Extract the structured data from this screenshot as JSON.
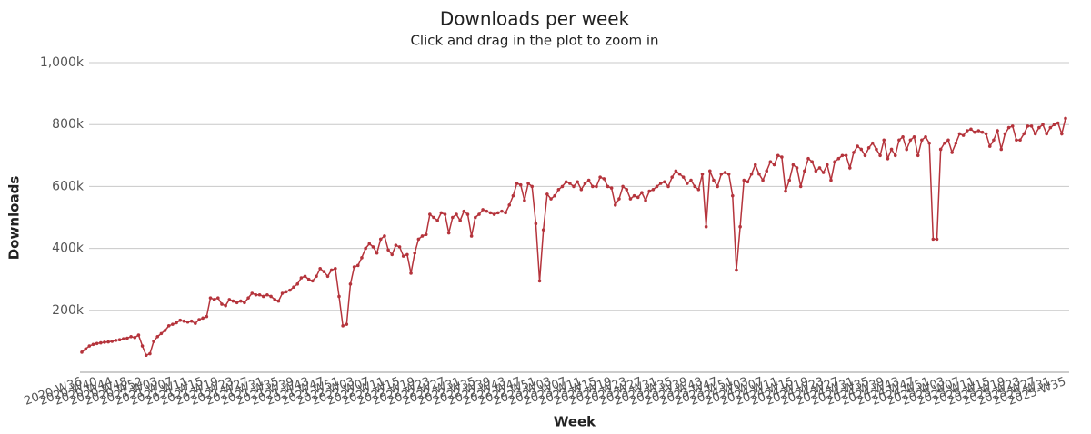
{
  "chart_data": {
    "type": "line",
    "title": "Downloads per week",
    "subtitle": "Click and drag in the plot to zoom in",
    "x_label": "Week",
    "y_label": "Downloads",
    "color": "#b5343c",
    "grid": true,
    "ylim": [
      0,
      1000000
    ],
    "yticks": [
      {
        "value": 200000,
        "label": "200k"
      },
      {
        "value": 400000,
        "label": "400k"
      },
      {
        "value": 600000,
        "label": "600k"
      },
      {
        "value": 800000,
        "label": "800k"
      },
      {
        "value": 1000000,
        "label": "1,000k"
      }
    ],
    "categories": [
      "2020-W36",
      null,
      null,
      null,
      "2020-W40",
      null,
      null,
      null,
      "2020-W44",
      null,
      null,
      null,
      "2020-W48",
      null,
      null,
      null,
      "2020-W52",
      null,
      null,
      null,
      "2021-W03",
      null,
      null,
      null,
      "2021-W07",
      null,
      null,
      null,
      "2021-W11",
      null,
      null,
      null,
      "2021-W15",
      null,
      null,
      null,
      "2021-W19",
      null,
      null,
      null,
      "2021-W23",
      null,
      null,
      null,
      "2021-W27",
      null,
      null,
      null,
      "2021-W31",
      null,
      null,
      null,
      "2021-W35",
      null,
      null,
      null,
      "2021-W39",
      null,
      null,
      null,
      "2021-W43",
      null,
      null,
      null,
      "2021-W47",
      null,
      null,
      null,
      "2021-W51",
      null,
      null,
      null,
      "2022-W03",
      null,
      null,
      null,
      "2022-W07",
      null,
      null,
      null,
      "2022-W11",
      null,
      null,
      null,
      "2022-W15",
      null,
      null,
      null,
      "2022-W19",
      null,
      null,
      null,
      "2022-W23",
      null,
      null,
      null,
      "2022-W27",
      null,
      null,
      null,
      "2022-W31",
      null,
      null,
      null,
      "2022-W35",
      null,
      null,
      null,
      "2022-W39",
      null,
      null,
      null,
      "2022-W43",
      null,
      null,
      null,
      "2022-W47",
      null,
      null,
      null,
      "2022-W51",
      null,
      null,
      null,
      "2023-W03",
      null,
      null,
      null,
      "2023-W07",
      null,
      null,
      null,
      "2023-W11",
      null,
      null,
      null,
      "2023-W15",
      null,
      null,
      null,
      "2023-W19",
      null,
      null,
      null,
      "2023-W23",
      null,
      null,
      null,
      "2023-W27",
      null,
      null,
      null,
      "2023-W31",
      null,
      null,
      null,
      "2023-W35",
      null,
      null,
      null,
      "2023-W39",
      null,
      null,
      null,
      "2023-W43",
      null,
      null,
      null,
      "2023-W47",
      null,
      null,
      null,
      "2023-W51",
      null,
      null,
      null,
      "2024-W03",
      null,
      null,
      null,
      "2024-W07",
      null,
      null,
      null,
      "2024-W11",
      null,
      null,
      null,
      "2024-W15",
      null,
      null,
      null,
      "2024-W19",
      null,
      null,
      null,
      "2024-W23",
      null,
      null,
      null,
      "2024-W27",
      null,
      null,
      null,
      "2024-W31",
      null,
      null,
      null,
      "2024-W35",
      null,
      null,
      null,
      "2024-W39",
      null,
      null,
      null,
      "2024-W43",
      null,
      null,
      null,
      "2024-W47",
      null,
      null,
      null,
      "2024-W51",
      null,
      null,
      null,
      "2025-W03",
      null,
      null,
      null,
      "2025-W07",
      null,
      null,
      null,
      "2025-W11",
      null,
      null,
      null,
      "2025-W15",
      null,
      null,
      null,
      "2025-W19",
      null,
      null,
      null,
      "2025-W23",
      null,
      null,
      null,
      "2025-W27",
      null,
      null,
      null,
      "2025-W31",
      null,
      null,
      null,
      "2025-W35"
    ],
    "values": [
      65000,
      75000,
      85000,
      90000,
      93000,
      95000,
      97000,
      98000,
      100000,
      103000,
      105000,
      108000,
      110000,
      115000,
      112000,
      120000,
      85000,
      55000,
      60000,
      100000,
      115000,
      125000,
      135000,
      150000,
      155000,
      160000,
      168000,
      165000,
      162000,
      165000,
      158000,
      170000,
      175000,
      180000,
      240000,
      235000,
      240000,
      220000,
      215000,
      235000,
      230000,
      225000,
      230000,
      225000,
      240000,
      255000,
      250000,
      250000,
      245000,
      250000,
      245000,
      235000,
      230000,
      255000,
      260000,
      265000,
      275000,
      285000,
      305000,
      310000,
      300000,
      295000,
      310000,
      335000,
      325000,
      310000,
      330000,
      335000,
      245000,
      150000,
      155000,
      285000,
      340000,
      345000,
      370000,
      400000,
      415000,
      405000,
      385000,
      430000,
      440000,
      395000,
      380000,
      410000,
      405000,
      375000,
      380000,
      320000,
      385000,
      430000,
      440000,
      445000,
      510000,
      500000,
      490000,
      515000,
      510000,
      450000,
      500000,
      510000,
      490000,
      520000,
      510000,
      440000,
      500000,
      510000,
      525000,
      520000,
      515000,
      510000,
      515000,
      520000,
      515000,
      540000,
      570000,
      610000,
      605000,
      555000,
      610000,
      600000,
      480000,
      295000,
      460000,
      575000,
      560000,
      570000,
      590000,
      600000,
      615000,
      610000,
      600000,
      615000,
      590000,
      610000,
      620000,
      600000,
      600000,
      630000,
      625000,
      600000,
      595000,
      540000,
      560000,
      600000,
      590000,
      560000,
      570000,
      565000,
      580000,
      555000,
      585000,
      590000,
      600000,
      610000,
      615000,
      600000,
      630000,
      650000,
      640000,
      630000,
      610000,
      620000,
      600000,
      590000,
      640000,
      470000,
      650000,
      620000,
      600000,
      640000,
      645000,
      640000,
      570000,
      330000,
      470000,
      620000,
      615000,
      640000,
      670000,
      640000,
      620000,
      650000,
      680000,
      670000,
      700000,
      695000,
      585000,
      620000,
      670000,
      660000,
      600000,
      650000,
      690000,
      680000,
      650000,
      660000,
      645000,
      670000,
      620000,
      680000,
      690000,
      700000,
      700000,
      660000,
      710000,
      730000,
      720000,
      700000,
      725000,
      740000,
      720000,
      700000,
      750000,
      690000,
      720000,
      700000,
      750000,
      760000,
      720000,
      750000,
      760000,
      700000,
      750000,
      760000,
      740000,
      430000,
      430000,
      720000,
      740000,
      750000,
      710000,
      740000,
      770000,
      765000,
      780000,
      785000,
      775000,
      780000,
      775000,
      770000,
      730000,
      750000,
      780000,
      720000,
      770000,
      790000,
      795000,
      750000,
      750000,
      770000,
      795000,
      795000,
      770000,
      790000,
      800000,
      770000,
      790000,
      800000,
      805000,
      770000,
      820000
    ]
  }
}
